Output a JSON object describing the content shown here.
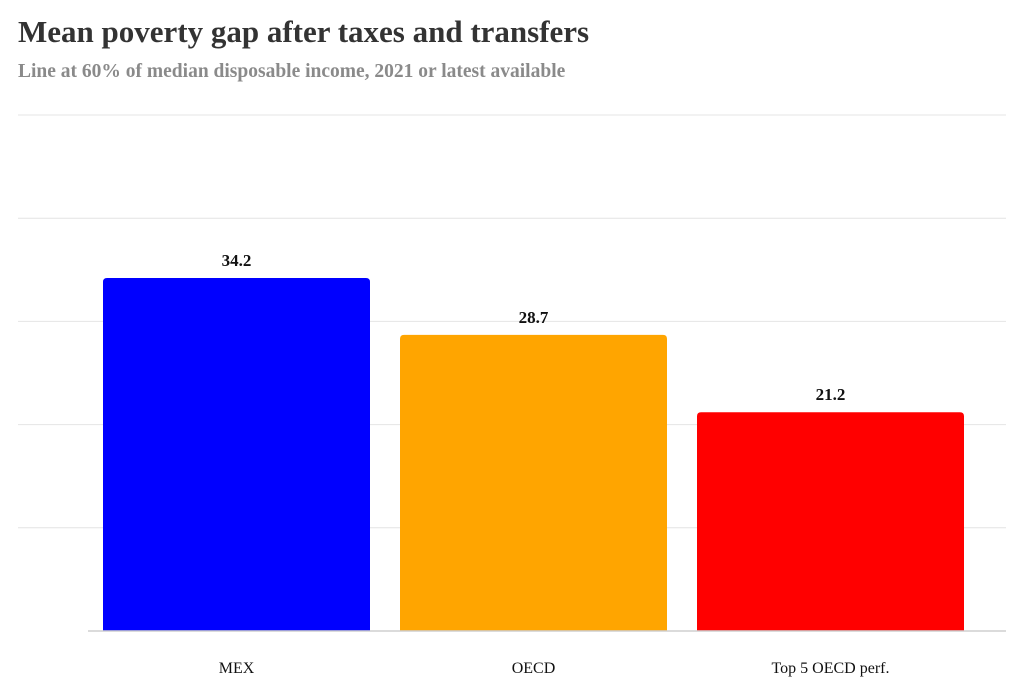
{
  "chart_data": {
    "type": "bar",
    "title": "Mean poverty gap after taxes and transfers",
    "subtitle": "Line at 60% of median disposable income, 2021 or latest available",
    "categories": [
      "MEX",
      "OECD",
      "Top 5 OECD perf."
    ],
    "values": [
      34.2,
      28.7,
      21.2
    ],
    "data_labels": [
      "34.2",
      "28.7",
      "21.2"
    ],
    "ylim": [
      0,
      50
    ],
    "grid": true,
    "legend": "none",
    "bar_colors": [
      "#0000ff",
      "#ffa500",
      "#ff0000"
    ],
    "colors": {
      "grid": "#e4e4e4",
      "axis": "#cfcfcf",
      "text": "#111111"
    }
  }
}
